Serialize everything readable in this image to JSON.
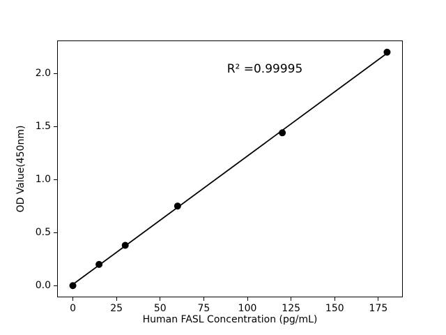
{
  "figure": {
    "background": "#ffffff",
    "axes_color": "#000000"
  },
  "chart_data": {
    "type": "scatter",
    "x": [
      0,
      15,
      30,
      60,
      120,
      180
    ],
    "y": [
      0.0,
      0.2,
      0.38,
      0.75,
      1.44,
      2.2
    ],
    "fit": "linear",
    "annotation": "R² =0.99995",
    "xlabel": "Human FASL Concentration (pg/mL)",
    "ylabel": "OD Value(450nm)",
    "xticks": [
      0,
      25,
      50,
      75,
      100,
      125,
      150,
      175
    ],
    "xtick_labels": [
      "0",
      "25",
      "50",
      "75",
      "100",
      "125",
      "150",
      "175"
    ],
    "yticks": [
      0.0,
      0.5,
      1.0,
      1.5,
      2.0
    ],
    "ytick_labels": [
      "0.0",
      "0.5",
      "1.0",
      "1.5",
      "2.0"
    ],
    "xlim": [
      -9,
      189
    ],
    "ylim": [
      -0.11,
      2.31
    ],
    "grid": false,
    "legend": "none",
    "marker_color": "#000000",
    "line_color": "#000000",
    "background": "#ffffff"
  }
}
